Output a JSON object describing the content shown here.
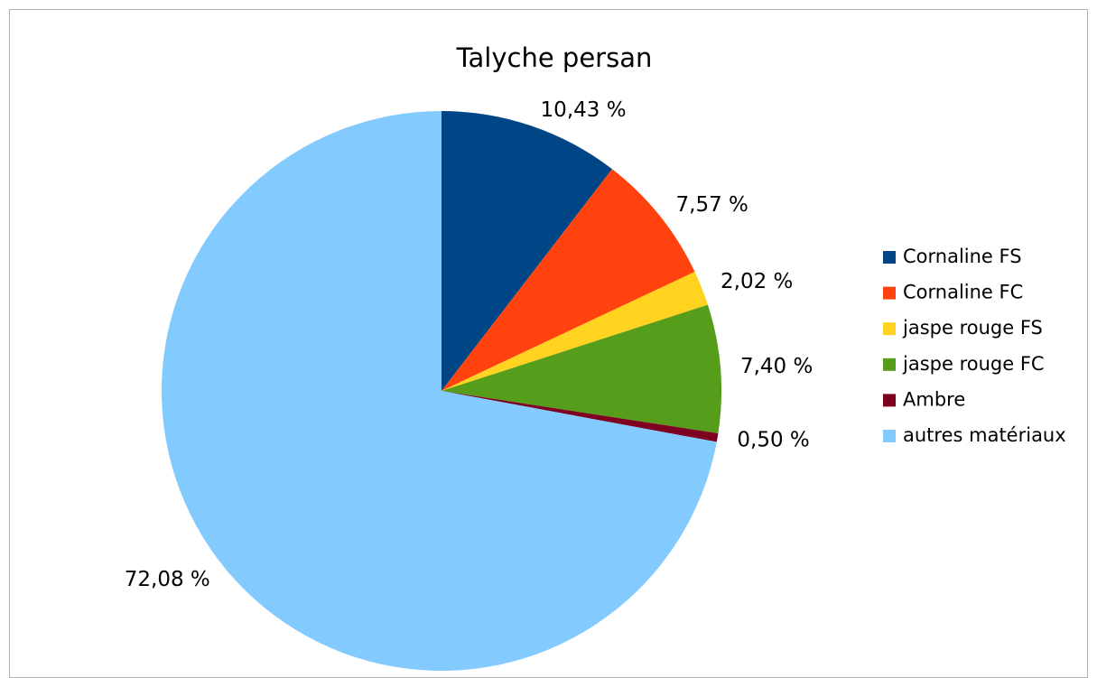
{
  "chart_data": {
    "type": "pie",
    "title": "Talyche persan",
    "categories": [
      "Cornaline FS",
      "Cornaline FC",
      "jaspe rouge FS",
      "jaspe rouge FC",
      "Ambre",
      "autres matériaux"
    ],
    "values": [
      10.43,
      7.57,
      2.02,
      7.4,
      0.5,
      72.08
    ],
    "value_labels": [
      "10,43 %",
      "7,57 %",
      "2,02 %",
      "7,40 %",
      "0,50 %",
      "72,08 %"
    ],
    "colors": [
      "#004586",
      "#ff420e",
      "#ffd320",
      "#579d1c",
      "#7e0021",
      "#83caff"
    ],
    "legend": "right"
  }
}
